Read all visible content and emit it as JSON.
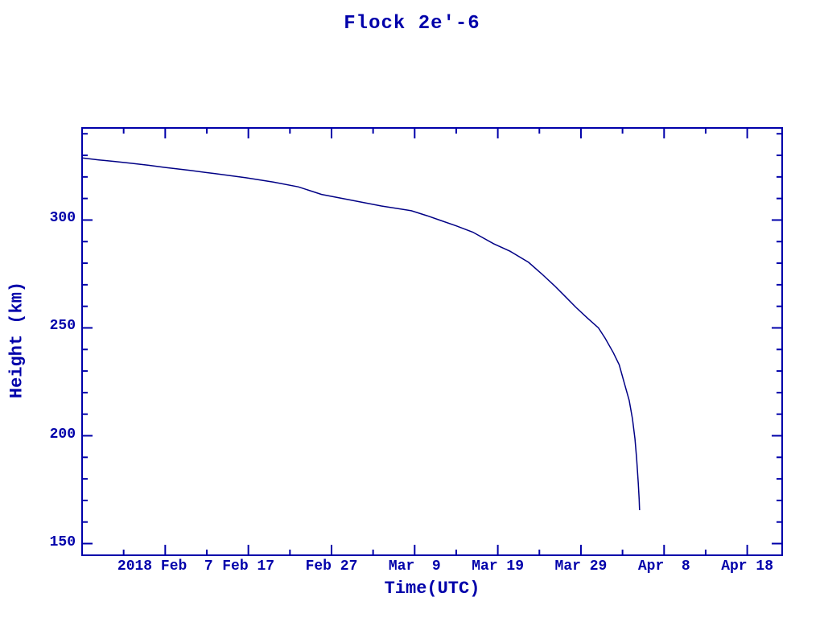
{
  "page": {
    "background_color": "#ffffff",
    "ink_color": "#0000aa",
    "curve_color": "#000085"
  },
  "chart_data": {
    "type": "line",
    "title": "Flock 2e'-6",
    "xlabel": "Time(UTC)",
    "ylabel": "Height (km)",
    "grid": false,
    "legend": null,
    "x_unit": "days (day 0 = left axis edge, 2018 Jan 28; derived from tick dates)",
    "xlim": [
      0,
      84.2
    ],
    "ylim": [
      144.6,
      342.7
    ],
    "x_minor_tick_step_days": 5,
    "y_minor_tick_step_km": 10,
    "x_major_ticks": [
      {
        "day": 10,
        "label": "2018 Feb  7"
      },
      {
        "day": 20,
        "label": "Feb 17"
      },
      {
        "day": 30,
        "label": "Feb 27"
      },
      {
        "day": 40,
        "label": "Mar  9"
      },
      {
        "day": 50,
        "label": "Mar 19"
      },
      {
        "day": 60,
        "label": "Mar 29"
      },
      {
        "day": 70,
        "label": "Apr  8"
      },
      {
        "day": 80,
        "label": "Apr 18"
      }
    ],
    "y_major_ticks": [
      {
        "km": 150,
        "label": "150"
      },
      {
        "km": 200,
        "label": "200"
      },
      {
        "km": 250,
        "label": "250"
      },
      {
        "km": 300,
        "label": "300"
      }
    ],
    "series": [
      {
        "points_day_heightkm": [
          [
            0.0,
            328.8
          ],
          [
            2,
            327.9
          ],
          [
            4,
            327.1
          ],
          [
            6,
            326.3
          ],
          [
            8,
            325.4
          ],
          [
            10,
            324.4
          ],
          [
            13,
            323.0
          ],
          [
            16,
            321.5
          ],
          [
            19.7,
            319.6
          ],
          [
            23,
            317.6
          ],
          [
            26,
            315.4
          ],
          [
            28.8,
            311.9
          ],
          [
            32,
            309.5
          ],
          [
            36,
            306.5
          ],
          [
            39.6,
            304.3
          ],
          [
            41.5,
            302.0
          ],
          [
            43,
            300.0
          ],
          [
            45,
            297.3
          ],
          [
            47,
            294.4
          ],
          [
            49.5,
            289.0
          ],
          [
            51.5,
            285.5
          ],
          [
            53.7,
            280.4
          ],
          [
            55.3,
            275.0
          ],
          [
            56.8,
            269.6
          ],
          [
            58,
            265.0
          ],
          [
            59.4,
            259.5
          ],
          [
            60.8,
            254.5
          ],
          [
            62.1,
            250.0
          ],
          [
            62.9,
            245.3
          ],
          [
            63.9,
            238.5
          ],
          [
            64.6,
            232.9
          ],
          [
            65.2,
            224.6
          ],
          [
            65.8,
            216.4
          ],
          [
            66.2,
            207.8
          ],
          [
            66.5,
            198.5
          ],
          [
            66.7,
            189.2
          ],
          [
            66.9,
            178.0
          ],
          [
            67.0,
            170.5
          ],
          [
            67.05,
            165.5
          ]
        ]
      }
    ]
  }
}
